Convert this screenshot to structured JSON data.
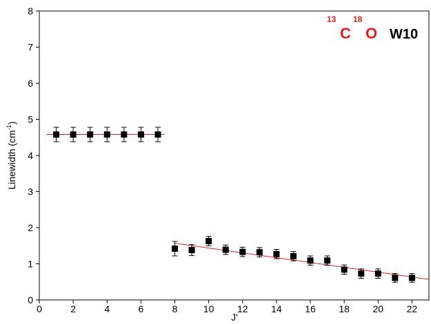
{
  "chart_data": {
    "type": "scatter",
    "x_label": "J'",
    "y_label": {
      "main": "Linewidth (cm",
      "sup": "-1",
      "end": ")"
    },
    "annotation": {
      "mass1": "13",
      "atom1": "C",
      "mass2": "18",
      "atom2": "O",
      "tag": "W10"
    },
    "xlim": [
      0,
      23
    ],
    "xticks": [
      0,
      2,
      4,
      6,
      8,
      10,
      12,
      14,
      16,
      18,
      20,
      22
    ],
    "ylim": [
      0,
      8
    ],
    "yticks": [
      0,
      1,
      2,
      3,
      4,
      5,
      6,
      7,
      8
    ],
    "series": [
      {
        "color": "#000000",
        "x": [
          1,
          2,
          3,
          4,
          5,
          6,
          7
        ],
        "values": [
          4.58,
          4.58,
          4.58,
          4.58,
          4.58,
          4.58,
          4.58
        ],
        "errors": [
          0.2,
          0.2,
          0.2,
          0.2,
          0.2,
          0.2,
          0.2
        ]
      },
      {
        "color": "#000000",
        "x": [
          8,
          9,
          10,
          11,
          12,
          13,
          14,
          15,
          16,
          17,
          18,
          19,
          20,
          21,
          22
        ],
        "values": [
          1.42,
          1.38,
          1.63,
          1.39,
          1.33,
          1.32,
          1.27,
          1.21,
          1.09,
          1.09,
          0.84,
          0.73,
          0.73,
          0.61,
          0.61
        ],
        "errors": [
          0.2,
          0.15,
          0.13,
          0.13,
          0.13,
          0.13,
          0.13,
          0.13,
          0.13,
          0.13,
          0.13,
          0.13,
          0.13,
          0.12,
          0.12
        ]
      }
    ],
    "fits": [
      {
        "color": "#e02020",
        "x": [
          0.4,
          7.4
        ],
        "values": [
          4.58,
          4.58
        ]
      },
      {
        "color": "#e02020",
        "x": [
          8,
          23
        ],
        "values": [
          1.57,
          0.57
        ]
      }
    ]
  }
}
